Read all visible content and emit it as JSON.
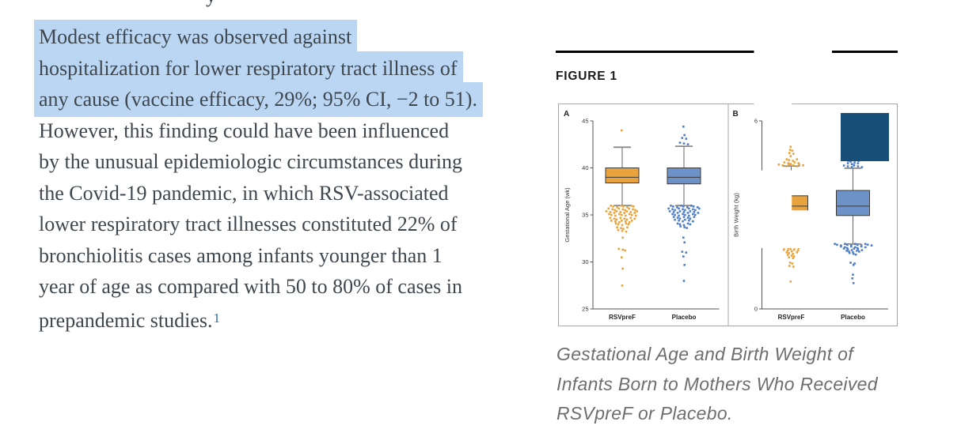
{
  "article": {
    "highlight_color": "#BAD6F3",
    "link_color": "#2A6BB0",
    "previous_line_fragment": "y",
    "paragraph_lines": [
      {
        "text": "Modest efficacy was observed against",
        "highlighted": true
      },
      {
        "text": "hospitalization for lower respiratory tract illness of",
        "highlighted": true
      },
      {
        "text": "any cause (vaccine efficacy, 29%; 95% CI, −2 to 51).",
        "highlighted": true
      },
      {
        "text": "However, this finding could have been influenced",
        "highlighted": false
      },
      {
        "text": "by the unusual epidemiologic circumstances during",
        "highlighted": false
      },
      {
        "text": "the Covid-19 pandemic, in which RSV-associated",
        "highlighted": false
      },
      {
        "text": "lower respiratory tract illnesses constituted 22% of",
        "highlighted": false
      },
      {
        "text": "bronchiolitis cases among infants younger than 1",
        "highlighted": false
      },
      {
        "text": "year of age as compared with 50 to 80% of cases in",
        "highlighted": false
      },
      {
        "text": "prepandemic studies.",
        "highlighted": false
      }
    ],
    "reference_mark": "1"
  },
  "figure_section": {
    "label": "FIGURE 1",
    "caption_lines": [
      "Gestational Age and Birth Weight of",
      "Infants Born to Mothers Who Received",
      "RSVpreF or Placebo."
    ],
    "expand_button": {
      "icon": "fullscreen-expand-icon",
      "color": "#174F78"
    }
  },
  "chart_data": [
    {
      "type": "box",
      "panel": "A",
      "ylabel": "Gestational Age (wk)",
      "ylim": [
        25,
        45
      ],
      "yticks": [
        25,
        30,
        35,
        40,
        45
      ],
      "categories": [
        "RSVpreF",
        "Placebo"
      ],
      "series": [
        {
          "name": "RSVpreF",
          "color": "#E8A33C",
          "dot_color": "#E8A33C",
          "q1": 38.4,
          "median": 39.0,
          "q3": 40.0,
          "whisker_low": 36.0,
          "whisker_high": 42.2,
          "points": [
            [
              43.9,
              1
            ],
            [
              35.9,
              8
            ],
            [
              35.6,
              9
            ],
            [
              35.3,
              10
            ],
            [
              35.0,
              9
            ],
            [
              34.6,
              8
            ],
            [
              34.3,
              7
            ],
            [
              34.0,
              5
            ],
            [
              33.6,
              4
            ],
            [
              33.3,
              3
            ],
            [
              32.5,
              1
            ],
            [
              31.3,
              3
            ],
            [
              30.4,
              1
            ],
            [
              29.2,
              1
            ],
            [
              27.4,
              1
            ]
          ]
        },
        {
          "name": "Placebo",
          "color": "#6C92C8",
          "dot_color": "#4E7EC8",
          "q1": 38.3,
          "median": 39.0,
          "q3": 40.0,
          "whisker_low": 36.0,
          "whisker_high": 42.3,
          "points": [
            [
              44.3,
              1
            ],
            [
              43.4,
              1
            ],
            [
              43.1,
              2
            ],
            [
              42.6,
              3
            ],
            [
              35.9,
              9
            ],
            [
              35.6,
              10
            ],
            [
              35.3,
              9
            ],
            [
              35.0,
              8
            ],
            [
              34.7,
              7
            ],
            [
              34.4,
              6
            ],
            [
              34.0,
              5
            ],
            [
              33.7,
              3
            ],
            [
              32.5,
              1
            ],
            [
              32.0,
              1
            ],
            [
              31.0,
              2
            ],
            [
              30.5,
              1
            ],
            [
              29.6,
              1
            ],
            [
              27.9,
              1
            ]
          ]
        }
      ]
    },
    {
      "type": "box",
      "panel": "B",
      "ylabel": "Birth Weight (kg)",
      "ylim": [
        0,
        6
      ],
      "yticks": [
        0,
        2,
        4,
        6
      ],
      "categories": [
        "RSVpreF",
        "Placebo"
      ],
      "series": [
        {
          "name": "RSVpreF",
          "color": "#E8A33C",
          "dot_color": "#E8A33C",
          "q1": 2.95,
          "median": 3.28,
          "q3": 3.61,
          "whisker_low": 2.07,
          "whisker_high": 4.56,
          "points": [
            [
              5.15,
              1
            ],
            [
              5.05,
              2
            ],
            [
              4.95,
              2
            ],
            [
              4.85,
              1
            ],
            [
              4.75,
              4
            ],
            [
              4.65,
              5
            ],
            [
              4.58,
              8
            ],
            [
              2.0,
              7
            ],
            [
              1.93,
              5
            ],
            [
              1.86,
              5
            ],
            [
              1.78,
              4
            ],
            [
              1.7,
              3
            ],
            [
              1.62,
              2
            ],
            [
              1.45,
              2
            ],
            [
              1.35,
              2
            ],
            [
              0.85,
              1
            ]
          ]
        },
        {
          "name": "Placebo",
          "color": "#6C92C8",
          "dot_color": "#4E7EC8",
          "q1": 2.98,
          "median": 3.28,
          "q3": 3.78,
          "whisker_low": 2.07,
          "whisker_high": 4.49,
          "points": [
            [
              4.8,
              3
            ],
            [
              4.7,
              4
            ],
            [
              4.62,
              4
            ],
            [
              4.55,
              6
            ],
            [
              2.05,
              12
            ],
            [
              1.97,
              8
            ],
            [
              1.9,
              6
            ],
            [
              1.83,
              5
            ],
            [
              1.76,
              3
            ],
            [
              1.45,
              2
            ],
            [
              1.38,
              1
            ],
            [
              1.07,
              1
            ],
            [
              0.95,
              1
            ],
            [
              0.8,
              1
            ]
          ]
        }
      ]
    }
  ]
}
